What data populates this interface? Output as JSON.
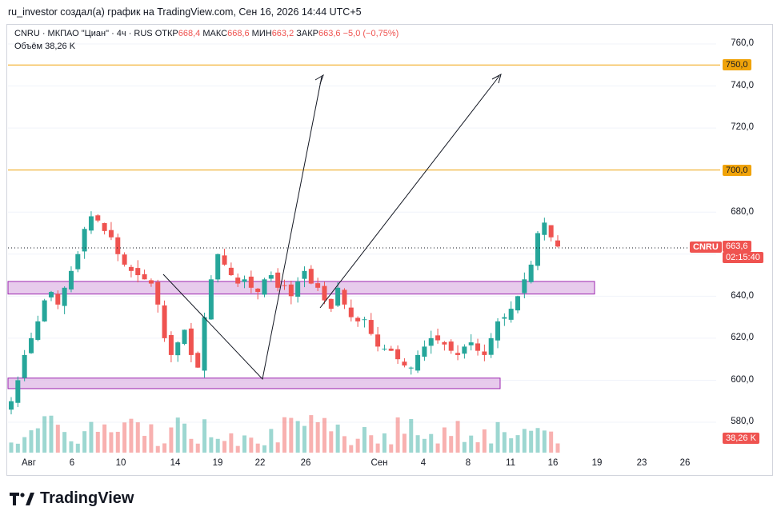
{
  "header": {
    "attribution": "ru_investor создал(а) график на TradingView.com, Сен 16, 2026 14:44 UTC+5"
  },
  "legend": {
    "symbol": "CNRU · МКПАО \"Циан\" · 4ч · RUS",
    "open_label": "ОТКР",
    "open": "668,4",
    "high_label": "МАКС",
    "high": "668,6",
    "low_label": "МИН",
    "low": "663,2",
    "close_label": "ЗАКР",
    "close": "663,6",
    "change": "−5,0 (−0,75%)",
    "volume_label": "Объём",
    "volume": "38,26 K"
  },
  "price_axis": {
    "ticks": [
      "760,0",
      "740,0",
      "720,0",
      "700,0",
      "680,0",
      "640,0",
      "620,0",
      "600,0",
      "580,0"
    ]
  },
  "badges": {
    "level_750": "750,0",
    "level_700": "700,0",
    "ticker": "CNRU",
    "price": "663,6",
    "timer": "02:15:40",
    "volume": "38,26 K"
  },
  "time_axis": {
    "ticks": [
      "Авг",
      "6",
      "10",
      "14",
      "19",
      "22",
      "26",
      "Сен",
      "4",
      "8",
      "11",
      "16",
      "19",
      "23",
      "26"
    ]
  },
  "footer": {
    "brand": "TradingView"
  },
  "colors": {
    "up": "#26a69a",
    "down": "#ef5350",
    "level": "#f0a30a",
    "zone": "#e1bee7"
  },
  "chart_data": {
    "type": "candlestick",
    "ylim": [
      575,
      765
    ],
    "horizontal_levels": [
      750,
      700
    ],
    "zones": [
      [
        641,
        647
      ],
      [
        596,
        601
      ]
    ],
    "last_price": 663.6,
    "closes": [
      590,
      600,
      612,
      620,
      628,
      638,
      642,
      636,
      644,
      652,
      660,
      672,
      678,
      676,
      671,
      668,
      660,
      655,
      652,
      650,
      648,
      646,
      636,
      620,
      612,
      618,
      624,
      612,
      606,
      630,
      648,
      660,
      655,
      650,
      646,
      648,
      644,
      642,
      648,
      650,
      644,
      645,
      640,
      647,
      652,
      646,
      644,
      638,
      634,
      644,
      636,
      630,
      628,
      629,
      622,
      616,
      615,
      614,
      610,
      607,
      606,
      612,
      616,
      620,
      619,
      617,
      614,
      612,
      616,
      618,
      614,
      612,
      620,
      628,
      630,
      634,
      640,
      648,
      655,
      670,
      675,
      668,
      663.6
    ]
  }
}
